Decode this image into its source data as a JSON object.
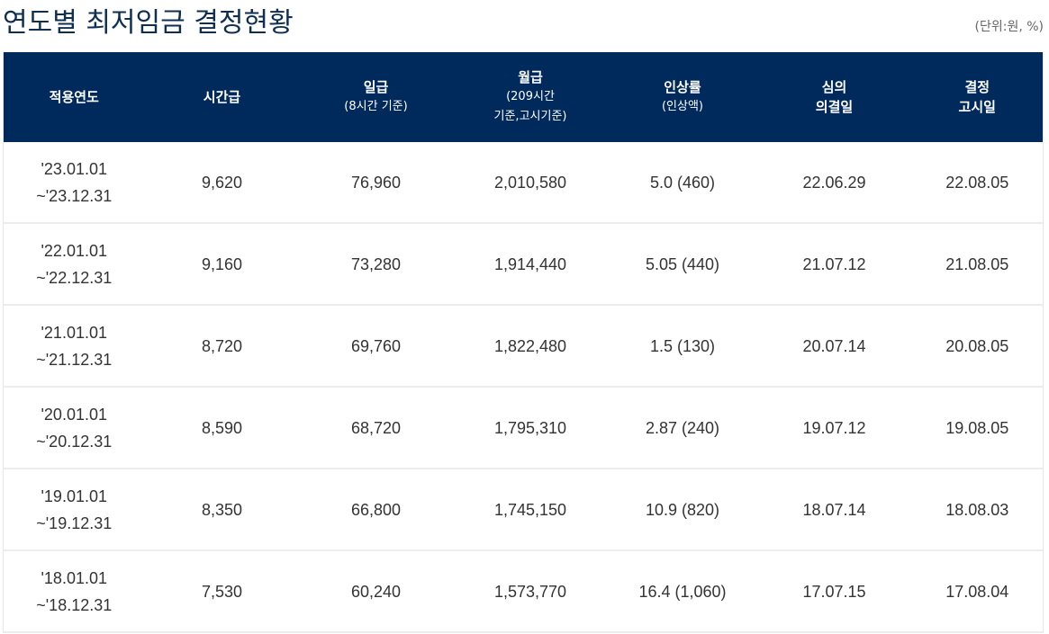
{
  "header": {
    "title": "연도별 최저임금 결정현황",
    "unit_note": "(단위:원, %)"
  },
  "table": {
    "columns": [
      {
        "label": "적용연도",
        "sub": ""
      },
      {
        "label": "시간급",
        "sub": ""
      },
      {
        "label": "일급",
        "sub": "(8시간 기준)"
      },
      {
        "label": "월급",
        "sub_line1": "(209시간",
        "sub_line2": "기준,고시기준)"
      },
      {
        "label": "인상률",
        "sub": "(인상액)"
      },
      {
        "label_line1": "심의",
        "label_line2": "의결일"
      },
      {
        "label_line1": "결정",
        "label_line2": "고시일"
      }
    ],
    "rows": [
      {
        "period_start": "'23.01.01",
        "period_end": "~'23.12.31",
        "hourly": "9,620",
        "daily": "76,960",
        "monthly": "2,010,580",
        "increase": "5.0 (460)",
        "resolution_date": "22.06.29",
        "notice_date": "22.08.05"
      },
      {
        "period_start": "'22.01.01",
        "period_end": "~'22.12.31",
        "hourly": "9,160",
        "daily": "73,280",
        "monthly": "1,914,440",
        "increase": "5.05 (440)",
        "resolution_date": "21.07.12",
        "notice_date": "21.08.05"
      },
      {
        "period_start": "'21.01.01",
        "period_end": "~'21.12.31",
        "hourly": "8,720",
        "daily": "69,760",
        "monthly": "1,822,480",
        "increase": "1.5 (130)",
        "resolution_date": "20.07.14",
        "notice_date": "20.08.05"
      },
      {
        "period_start": "'20.01.01",
        "period_end": "~'20.12.31",
        "hourly": "8,590",
        "daily": "68,720",
        "monthly": "1,795,310",
        "increase": "2.87 (240)",
        "resolution_date": "19.07.12",
        "notice_date": "19.08.05"
      },
      {
        "period_start": "'19.01.01",
        "period_end": "~'19.12.31",
        "hourly": "8,350",
        "daily": "66,800",
        "monthly": "1,745,150",
        "increase": "10.9 (820)",
        "resolution_date": "18.07.14",
        "notice_date": "18.08.03"
      },
      {
        "period_start": "'18.01.01",
        "period_end": "~'18.12.31",
        "hourly": "7,530",
        "daily": "60,240",
        "monthly": "1,573,770",
        "increase": "16.4 (1,060)",
        "resolution_date": "17.07.15",
        "notice_date": "17.08.04"
      }
    ]
  },
  "colors": {
    "header_bg": "#002a5c",
    "title": "#0f2f52",
    "row_border": "#ececec"
  }
}
